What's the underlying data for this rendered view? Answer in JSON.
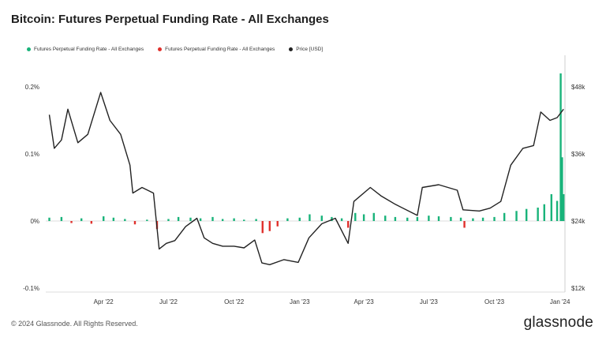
{
  "header": {
    "title": "Bitcoin: Futures Perpetual Funding Rate - All Exchanges"
  },
  "legend": [
    {
      "label": "Futures Perpetual Funding Rate - All Exchanges",
      "color": "#19b37a"
    },
    {
      "label": "Futures Perpetual Funding Rate - All Exchanges",
      "color": "#e0302c"
    },
    {
      "label": "Price [USD]",
      "color": "#222222"
    }
  ],
  "footer": {
    "copyright": "© 2024 Glassnode. All Rights Reserved.",
    "brand": "glassnode"
  },
  "chart_data": {
    "type": "bar",
    "title": "Bitcoin: Futures Perpetual Funding Rate - All Exchanges",
    "x_tick_labels": [
      "Apr '22",
      "Jul '22",
      "Oct '22",
      "Jan '23",
      "Apr '23",
      "Jul '23",
      "Oct '23",
      "Jan '24"
    ],
    "y_left": {
      "ticks": [
        "0.2%",
        "0.1%",
        "0%",
        "-0.1%"
      ],
      "range": [
        -0.1,
        0.2
      ],
      "unit": "%"
    },
    "y_right": {
      "ticks": [
        "$48k",
        "$36k",
        "$24k",
        "$12k"
      ],
      "range": [
        12000,
        48000
      ],
      "unit": "USD"
    },
    "grid": false,
    "legend_position": "top-left",
    "funding_rate": {
      "positive_color": "#19b37a",
      "negative_color": "#e0302c",
      "points": [
        [
          "2022-01-15",
          0.005
        ],
        [
          "2022-02-01",
          0.006
        ],
        [
          "2022-02-15",
          -0.003
        ],
        [
          "2022-03-01",
          0.004
        ],
        [
          "2022-03-15",
          -0.004
        ],
        [
          "2022-04-01",
          0.007
        ],
        [
          "2022-04-15",
          0.005
        ],
        [
          "2022-05-01",
          0.003
        ],
        [
          "2022-05-15",
          -0.005
        ],
        [
          "2022-06-01",
          0.002
        ],
        [
          "2022-06-15",
          -0.012
        ],
        [
          "2022-07-01",
          0.003
        ],
        [
          "2022-07-15",
          0.006
        ],
        [
          "2022-08-01",
          0.005
        ],
        [
          "2022-08-15",
          0.004
        ],
        [
          "2022-09-01",
          0.006
        ],
        [
          "2022-09-15",
          0.003
        ],
        [
          "2022-10-01",
          0.004
        ],
        [
          "2022-10-15",
          0.002
        ],
        [
          "2022-11-01",
          0.003
        ],
        [
          "2022-11-10",
          -0.018
        ],
        [
          "2022-11-20",
          -0.015
        ],
        [
          "2022-12-01",
          -0.008
        ],
        [
          "2022-12-15",
          0.004
        ],
        [
          "2023-01-01",
          0.005
        ],
        [
          "2023-01-15",
          0.01
        ],
        [
          "2023-02-01",
          0.008
        ],
        [
          "2023-02-15",
          0.006
        ],
        [
          "2023-03-01",
          0.004
        ],
        [
          "2023-03-10",
          -0.01
        ],
        [
          "2023-03-20",
          0.012
        ],
        [
          "2023-04-01",
          0.01
        ],
        [
          "2023-04-15",
          0.012
        ],
        [
          "2023-05-01",
          0.008
        ],
        [
          "2023-05-15",
          0.006
        ],
        [
          "2023-06-01",
          0.005
        ],
        [
          "2023-06-15",
          0.006
        ],
        [
          "2023-07-01",
          0.008
        ],
        [
          "2023-07-15",
          0.007
        ],
        [
          "2023-08-01",
          0.006
        ],
        [
          "2023-08-15",
          0.005
        ],
        [
          "2023-08-20",
          -0.01
        ],
        [
          "2023-09-01",
          0.004
        ],
        [
          "2023-09-15",
          0.005
        ],
        [
          "2023-10-01",
          0.006
        ],
        [
          "2023-10-15",
          0.012
        ],
        [
          "2023-11-01",
          0.015
        ],
        [
          "2023-11-15",
          0.018
        ],
        [
          "2023-12-01",
          0.02
        ],
        [
          "2023-12-10",
          0.025
        ],
        [
          "2023-12-20",
          0.04
        ],
        [
          "2023-12-28",
          0.03
        ],
        [
          "2024-01-02",
          0.22
        ],
        [
          "2024-01-04",
          0.095
        ],
        [
          "2024-01-06",
          0.04
        ]
      ]
    },
    "price": {
      "color": "#222222",
      "points": [
        [
          "2022-01-15",
          43000
        ],
        [
          "2022-01-22",
          37000
        ],
        [
          "2022-02-01",
          38500
        ],
        [
          "2022-02-10",
          44000
        ],
        [
          "2022-02-24",
          38000
        ],
        [
          "2022-03-10",
          39500
        ],
        [
          "2022-03-28",
          47000
        ],
        [
          "2022-04-10",
          42000
        ],
        [
          "2022-04-25",
          39500
        ],
        [
          "2022-05-08",
          34000
        ],
        [
          "2022-05-12",
          29000
        ],
        [
          "2022-05-25",
          30000
        ],
        [
          "2022-06-10",
          29000
        ],
        [
          "2022-06-18",
          19000
        ],
        [
          "2022-06-28",
          20000
        ],
        [
          "2022-07-10",
          20500
        ],
        [
          "2022-07-25",
          23000
        ],
        [
          "2022-08-10",
          24500
        ],
        [
          "2022-08-20",
          21000
        ],
        [
          "2022-09-01",
          20000
        ],
        [
          "2022-09-15",
          19500
        ],
        [
          "2022-10-01",
          19500
        ],
        [
          "2022-10-15",
          19200
        ],
        [
          "2022-10-30",
          20600
        ],
        [
          "2022-11-09",
          16500
        ],
        [
          "2022-11-20",
          16200
        ],
        [
          "2022-12-10",
          17100
        ],
        [
          "2022-12-30",
          16600
        ],
        [
          "2023-01-14",
          21000
        ],
        [
          "2023-02-01",
          23500
        ],
        [
          "2023-02-20",
          24500
        ],
        [
          "2023-03-10",
          20000
        ],
        [
          "2023-03-18",
          27500
        ],
        [
          "2023-04-10",
          30000
        ],
        [
          "2023-04-25",
          28500
        ],
        [
          "2023-05-15",
          27000
        ],
        [
          "2023-06-15",
          25000
        ],
        [
          "2023-06-22",
          30000
        ],
        [
          "2023-07-15",
          30500
        ],
        [
          "2023-08-10",
          29500
        ],
        [
          "2023-08-18",
          26000
        ],
        [
          "2023-09-10",
          25800
        ],
        [
          "2023-09-25",
          26300
        ],
        [
          "2023-10-10",
          27500
        ],
        [
          "2023-10-24",
          34000
        ],
        [
          "2023-11-10",
          37000
        ],
        [
          "2023-11-25",
          37500
        ],
        [
          "2023-12-05",
          43500
        ],
        [
          "2023-12-18",
          42000
        ],
        [
          "2023-12-28",
          42500
        ],
        [
          "2024-01-06",
          44000
        ]
      ]
    }
  }
}
